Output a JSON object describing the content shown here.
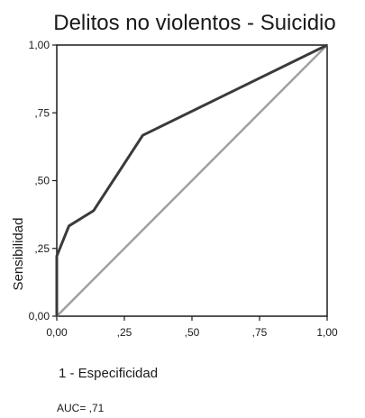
{
  "chart_data": {
    "type": "line",
    "title": "Delitos no violentos - Suicidio",
    "xlabel": "1 - Especificidad",
    "ylabel": "Sensibilidad",
    "xlim": [
      0,
      1
    ],
    "ylim": [
      0,
      1
    ],
    "x_ticks": [
      0,
      0.25,
      0.5,
      0.75,
      1
    ],
    "y_ticks": [
      0,
      0.25,
      0.5,
      0.75,
      1
    ],
    "x_tick_labels": [
      "0,00",
      ",25",
      ",50",
      ",75",
      "1,00"
    ],
    "y_tick_labels": [
      "0,00",
      ",25",
      ",50",
      ",75",
      "1,00"
    ],
    "grid": false,
    "annotation": "AUC= ,71",
    "series": [
      {
        "color": "#3a3a3a",
        "x": [
          0,
          0,
          0.045,
          0.136,
          0.318,
          1
        ],
        "y": [
          0,
          0.222,
          0.333,
          0.389,
          0.667,
          1
        ]
      },
      {
        "color": "#a0a0a0",
        "x": [
          0,
          1
        ],
        "y": [
          0,
          1
        ]
      }
    ]
  }
}
